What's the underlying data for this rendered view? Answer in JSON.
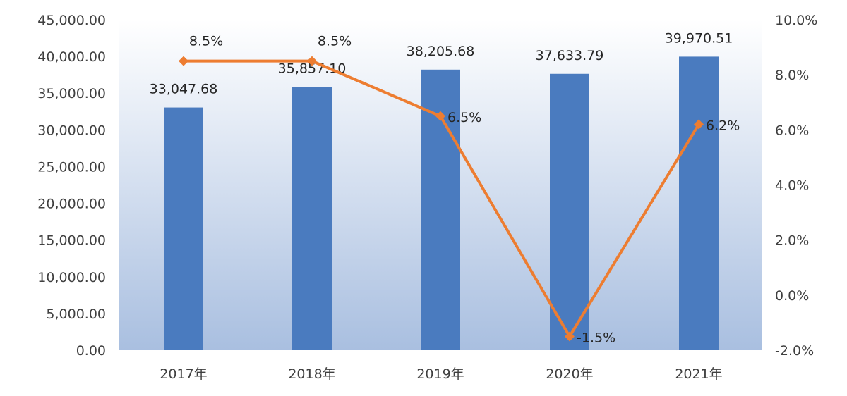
{
  "colors": {
    "bar": "#4a7bbf",
    "line": "#ed7d31",
    "plot_bg_top": "#ffffff",
    "plot_bg_bottom": "#a9bfe0",
    "axis_text": "#404040",
    "label_text": "#262626"
  },
  "chart_data": {
    "type": "bar",
    "title": "",
    "xlabel": "",
    "ylabel": "",
    "categories": [
      "2017年",
      "2018年",
      "2019年",
      "2020年",
      "2021年"
    ],
    "series": [
      {
        "type": "bar",
        "axis": "left",
        "values": [
          33047.68,
          35857.1,
          38205.68,
          37633.79,
          39970.51
        ],
        "labels": [
          "33,047.68",
          "35,857.10",
          "38,205.68",
          "37,633.79",
          "39,970.51"
        ]
      },
      {
        "type": "line",
        "axis": "right",
        "values": [
          8.5,
          8.5,
          6.5,
          -1.5,
          6.2
        ],
        "labels": [
          "8.5%",
          "8.5%",
          "6.5%",
          "-1.5%",
          "6.2%"
        ]
      }
    ],
    "y_left": {
      "ylim": [
        0,
        45000
      ],
      "ticks": [
        "0.00",
        "5,000.00",
        "10,000.00",
        "15,000.00",
        "20,000.00",
        "25,000.00",
        "30,000.00",
        "35,000.00",
        "40,000.00",
        "45,000.00"
      ]
    },
    "y_right": {
      "ylim": [
        -2.0,
        10.0
      ],
      "ticks": [
        "-2.0%",
        "0.0%",
        "2.0%",
        "4.0%",
        "6.0%",
        "8.0%",
        "10.0%"
      ]
    },
    "grid": false,
    "legend": "none"
  }
}
